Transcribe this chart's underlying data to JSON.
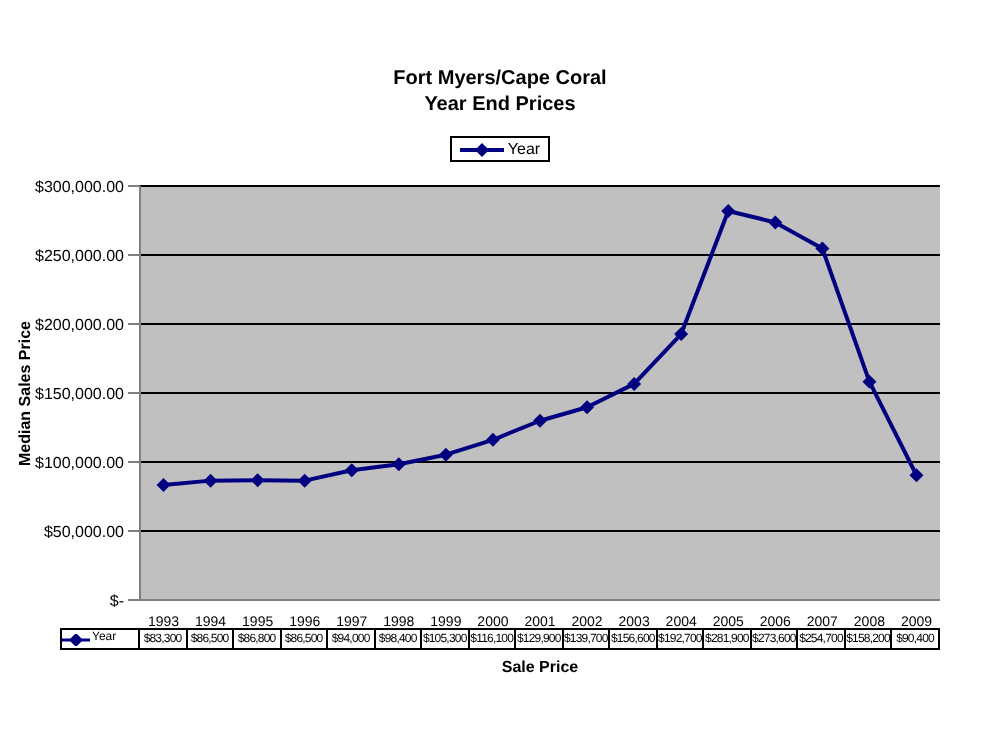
{
  "chart_data": {
    "type": "line",
    "title": "Fort Myers/Cape Coral\nYear End Prices",
    "xlabel": "Sale Price",
    "ylabel": "Median Sales Price",
    "categories": [
      "1993",
      "1994",
      "1995",
      "1996",
      "1997",
      "1998",
      "1999",
      "2000",
      "2001",
      "2002",
      "2003",
      "2004",
      "2005",
      "2006",
      "2007",
      "2008",
      "2009"
    ],
    "series": [
      {
        "name": "Year",
        "color": "#000080",
        "values": [
          83300,
          86500,
          86800,
          86500,
          94000,
          98400,
          105300,
          116100,
          129900,
          139700,
          156600,
          192700,
          281900,
          273600,
          254700,
          158200,
          90400
        ],
        "value_labels": [
          "$83,300",
          "$86,500",
          "$86,800",
          "$86,500",
          "$94,000",
          "$98,400",
          "$105,300",
          "$116,100",
          "$129,900",
          "$139,700",
          "$156,600",
          "$192,700",
          "$281,900",
          "$273,600",
          "$254,700",
          "$158,200",
          "$90,400"
        ]
      }
    ],
    "ylim": [
      0,
      300000
    ],
    "yticks": [
      {
        "value": 0,
        "label": "$-"
      },
      {
        "value": 50000,
        "label": "$50,000.00"
      },
      {
        "value": 100000,
        "label": "$100,000.00"
      },
      {
        "value": 150000,
        "label": "$150,000.00"
      },
      {
        "value": 200000,
        "label": "$200,000.00"
      },
      {
        "value": 250000,
        "label": "$250,000.00"
      },
      {
        "value": 300000,
        "label": "$300,000.00"
      }
    ],
    "grid": "y",
    "legend": "top",
    "marker": "diamond",
    "line_style": "solid"
  }
}
